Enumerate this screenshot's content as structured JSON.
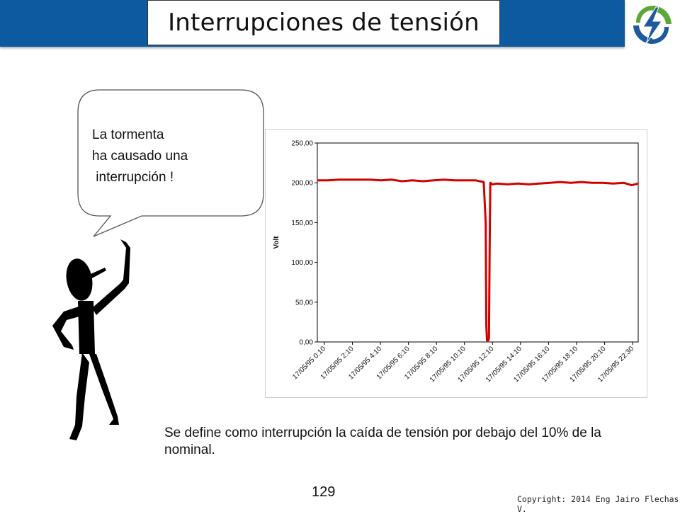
{
  "header": {
    "title": "Interrupciones de tensión"
  },
  "bubble": {
    "text": "La tormenta\nha causado una\n interrupción !"
  },
  "caption": {
    "text": "Se define como interrupción la caída de tensión por debajo del 10% de la nominal."
  },
  "footer": {
    "page_number": "129",
    "copyright": "Copyright: 2014 Eng Jairo Flechas V."
  },
  "logo": {
    "icon": "lightning-bolt-icon",
    "colors": {
      "green": "#5aa83a",
      "blue": "#1e5a9e"
    }
  },
  "colors": {
    "header_bar": "#0e5aa0",
    "series_line": "#d40000"
  },
  "chart_data": {
    "type": "line",
    "title": "",
    "xlabel": "",
    "ylabel": "Volt",
    "ylim": [
      0,
      250
    ],
    "y_ticks": [
      "0,00",
      "50,00",
      "100,00",
      "150,00",
      "200,00",
      "250,00"
    ],
    "y_tick_values": [
      0,
      50,
      100,
      150,
      200,
      250
    ],
    "grid": false,
    "legend": "none",
    "x_ticks": [
      "17/05/95 0:10",
      "17/05/95 2:10",
      "17/05/95 4:10",
      "17/05/95 6:10",
      "17/05/95 8:10",
      "17/05/95 10:10",
      "17/05/95 12:10",
      "17/05/95 14:10",
      "17/05/95 16:10",
      "17/05/95 18:10",
      "17/05/95 20:10",
      "17/05/95 22:30"
    ],
    "x_range_hours": [
      0.0,
      24.3
    ],
    "series": [
      {
        "color": "#d40000",
        "points": [
          [
            0.0,
            203
          ],
          [
            0.8,
            203
          ],
          [
            1.6,
            204
          ],
          [
            2.4,
            204
          ],
          [
            3.2,
            204
          ],
          [
            4.0,
            204
          ],
          [
            4.8,
            203
          ],
          [
            5.6,
            204
          ],
          [
            6.4,
            202
          ],
          [
            7.2,
            203
          ],
          [
            8.0,
            202
          ],
          [
            8.8,
            203
          ],
          [
            9.6,
            204
          ],
          [
            10.4,
            203
          ],
          [
            11.2,
            203
          ],
          [
            12.0,
            203
          ],
          [
            12.6,
            201
          ],
          [
            12.75,
            150
          ],
          [
            12.8,
            20
          ],
          [
            12.85,
            2
          ],
          [
            12.95,
            2
          ],
          [
            13.0,
            5
          ],
          [
            13.05,
            120
          ],
          [
            13.1,
            200
          ],
          [
            13.25,
            198
          ],
          [
            13.6,
            199
          ],
          [
            14.4,
            198
          ],
          [
            15.2,
            199
          ],
          [
            16.0,
            198
          ],
          [
            16.8,
            199
          ],
          [
            17.6,
            200
          ],
          [
            18.4,
            201
          ],
          [
            19.2,
            200
          ],
          [
            20.0,
            201
          ],
          [
            20.8,
            200
          ],
          [
            21.6,
            200
          ],
          [
            22.4,
            199
          ],
          [
            23.2,
            200
          ],
          [
            23.8,
            197
          ],
          [
            24.3,
            199
          ]
        ]
      }
    ]
  }
}
